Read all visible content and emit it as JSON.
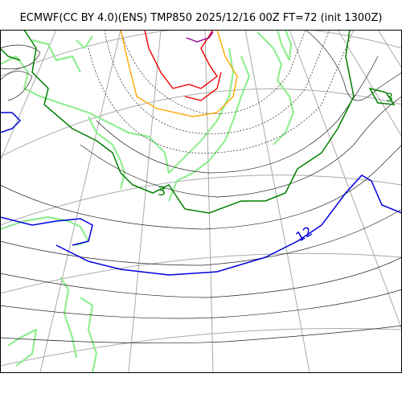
{
  "title": "ECMWF(CC BY 4.0)(ENS) TMP850 2025/12/16 00Z FT=72 (init 1300Z)",
  "contour_labels": {
    "green": "3",
    "green_right": "3",
    "blue": "12"
  },
  "colors": {
    "coast": "#90ee90",
    "graticule": "#aaaaaa",
    "contour": "#222222",
    "c3": "#008000",
    "c12": "#0000dd",
    "red": "#ee0000",
    "orange": "#ffa500",
    "purple": "#990099"
  }
}
